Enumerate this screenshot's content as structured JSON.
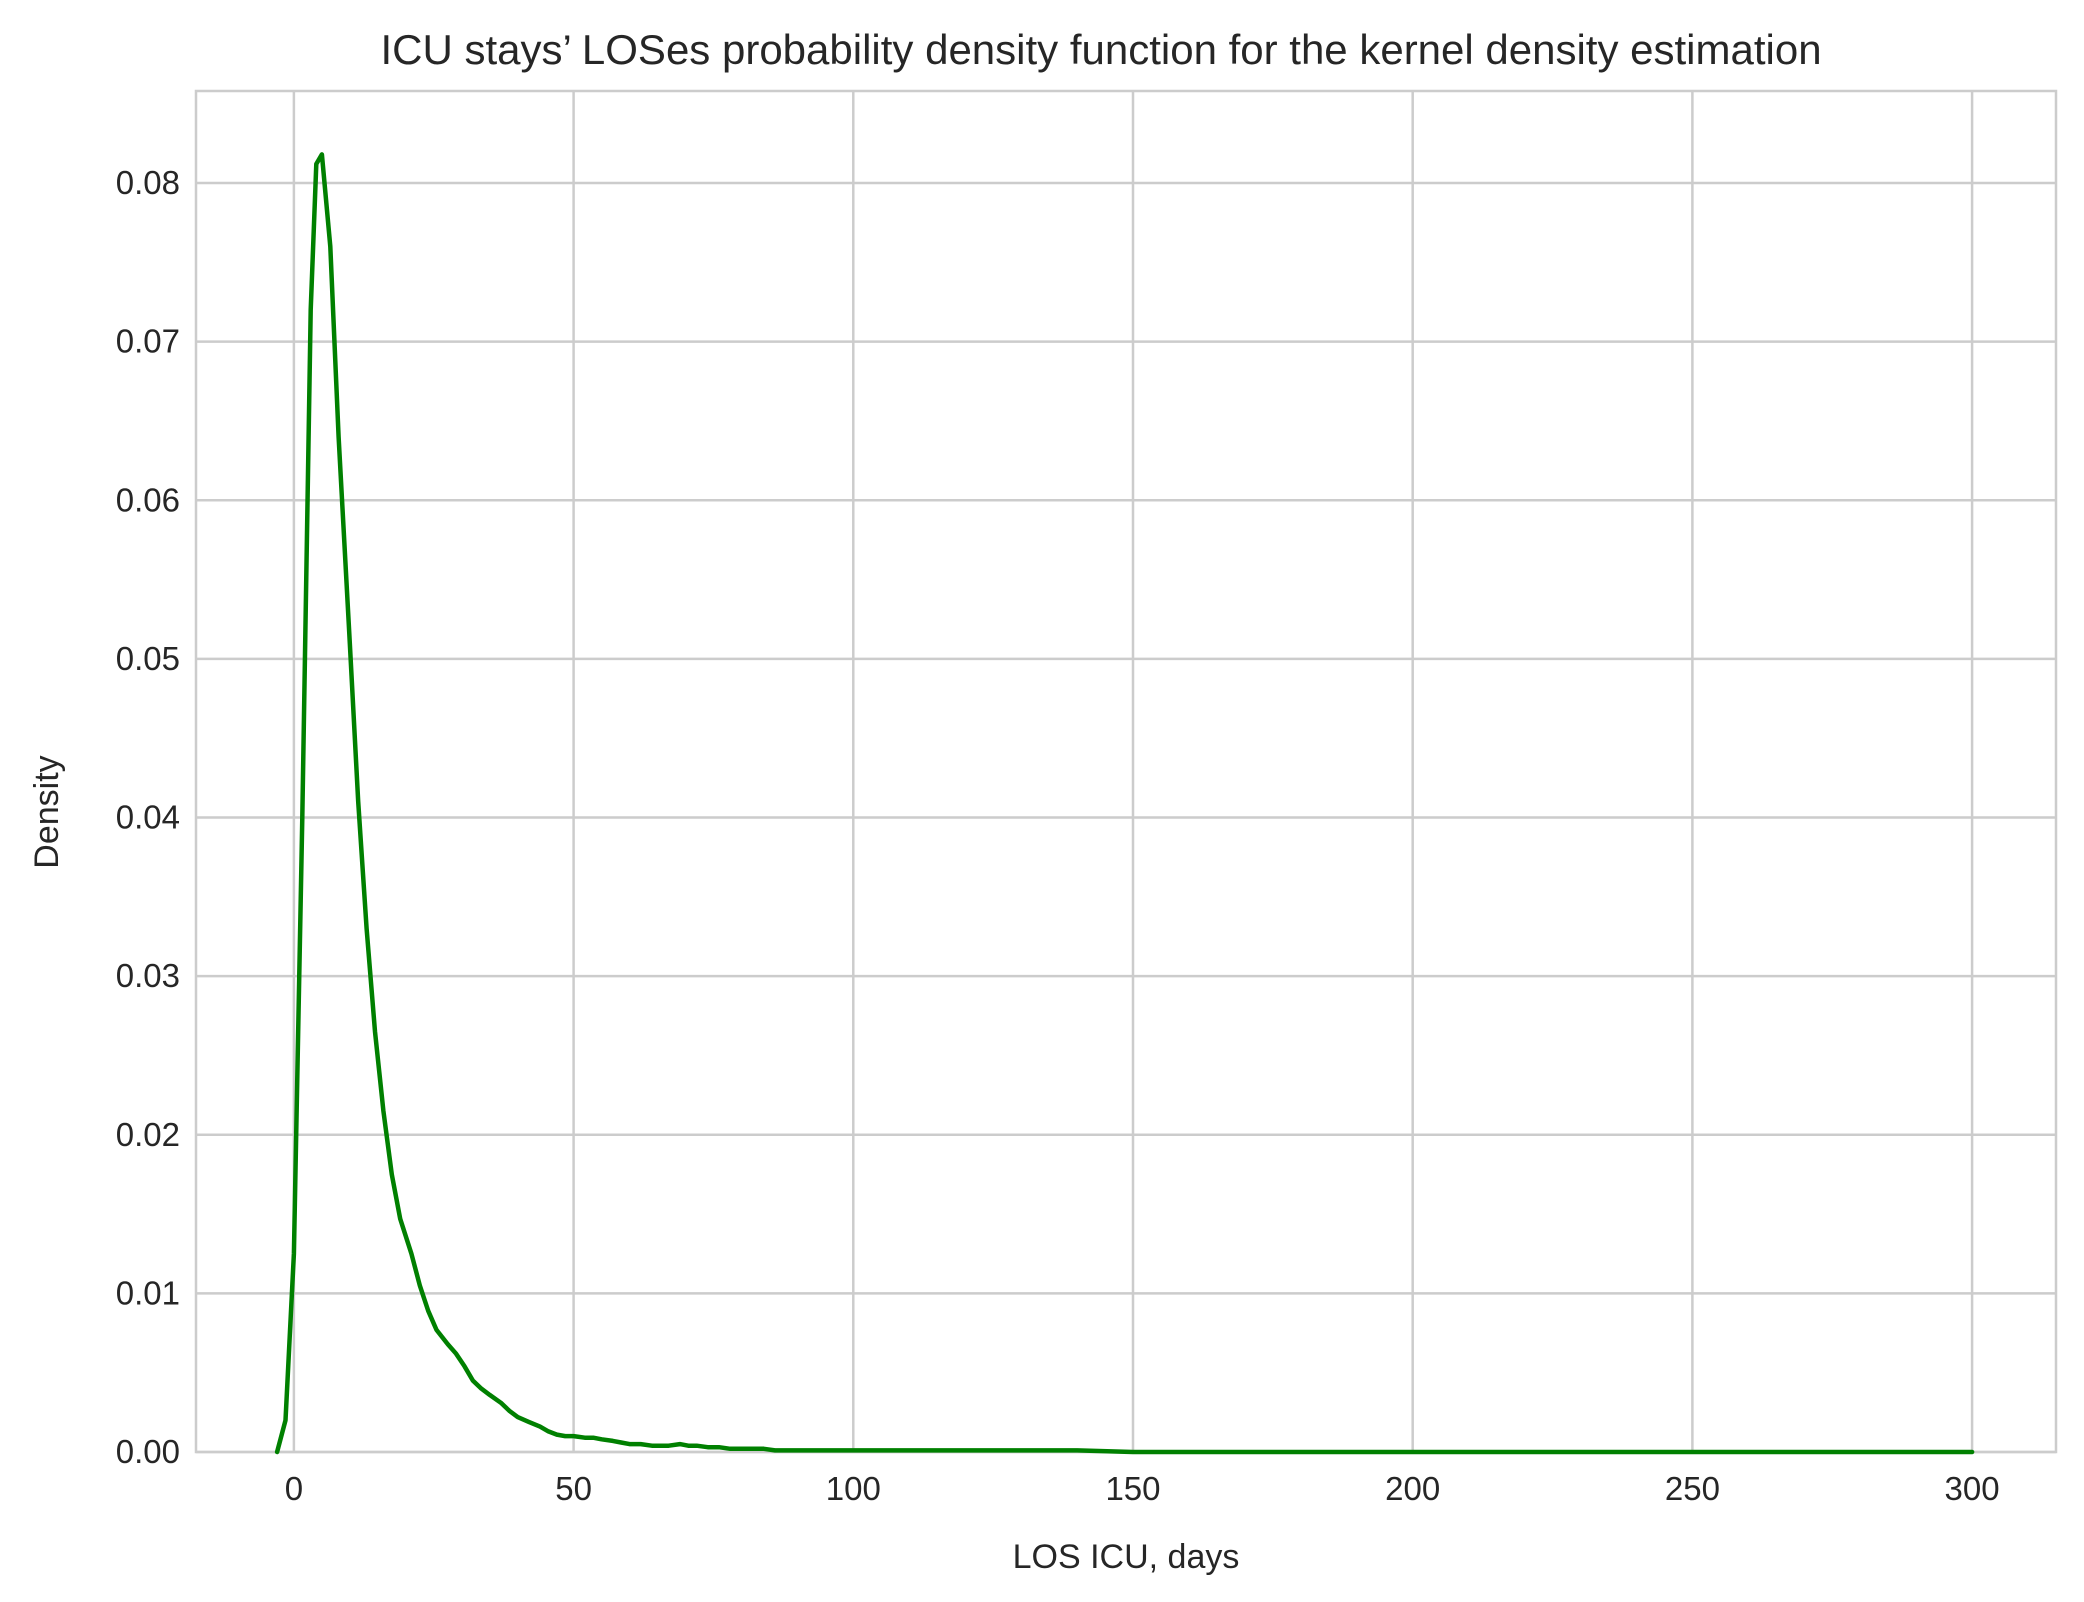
{
  "chart_data": {
    "type": "line",
    "title": "ICU stays’ LOSes probability density function for the kernel density estimation",
    "xlabel": "LOS ICU, days",
    "ylabel": "Density",
    "xlim": [
      -17.5,
      315
    ],
    "ylim": [
      0,
      0.0858
    ],
    "xticks": [
      0,
      50,
      100,
      150,
      200,
      250,
      300
    ],
    "xtick_labels": [
      "0",
      "50",
      "100",
      "150",
      "200",
      "250",
      "300"
    ],
    "yticks": [
      0.0,
      0.01,
      0.02,
      0.03,
      0.04,
      0.05,
      0.06,
      0.07,
      0.08
    ],
    "ytick_labels": [
      "0.00",
      "0.01",
      "0.02",
      "0.03",
      "0.04",
      "0.05",
      "0.06",
      "0.07",
      "0.08"
    ],
    "grid": true,
    "legend": false,
    "colors": {
      "line": "#008000",
      "grid": "#cccccc",
      "text": "#262626",
      "background": "#ffffff"
    },
    "series": [
      {
        "x": [
          -3,
          -1.5,
          0,
          1.5,
          3,
          4,
          5,
          6.5,
          8,
          10,
          11.5,
          13,
          14.5,
          16,
          17.5,
          19,
          21,
          22.5,
          24,
          25.5,
          27.5,
          29,
          30.5,
          32,
          33.5,
          35,
          37,
          38.5,
          40,
          42,
          44,
          45.5,
          47,
          48.5,
          50,
          52,
          53.5,
          55,
          57,
          58.5,
          60,
          62,
          64,
          65.5,
          67,
          69,
          70.5,
          72,
          74,
          76,
          78,
          80,
          82,
          84,
          86,
          88,
          90,
          94,
          98,
          102,
          106,
          110,
          120,
          130,
          140,
          150,
          160,
          170,
          180,
          190,
          200,
          210,
          220,
          230,
          240,
          250,
          260,
          270,
          280,
          290,
          300
        ],
        "y": [
          0.0,
          0.002,
          0.0125,
          0.04,
          0.072,
          0.0812,
          0.0818,
          0.076,
          0.064,
          0.051,
          0.041,
          0.033,
          0.0265,
          0.0215,
          0.0175,
          0.0147,
          0.0125,
          0.0105,
          0.0089,
          0.0077,
          0.0068,
          0.0062,
          0.0054,
          0.0045,
          0.004,
          0.0036,
          0.0031,
          0.0026,
          0.0022,
          0.0019,
          0.0016,
          0.0013,
          0.0011,
          0.001,
          0.001,
          0.0009,
          0.0009,
          0.0008,
          0.0007,
          0.0006,
          0.0005,
          0.0005,
          0.0004,
          0.0004,
          0.0004,
          0.0005,
          0.0004,
          0.0004,
          0.0003,
          0.0003,
          0.0002,
          0.0002,
          0.0002,
          0.0002,
          0.0001,
          0.0001,
          0.0001,
          0.0001,
          0.0001,
          0.0001,
          0.0001,
          0.0001,
          0.0001,
          0.0001,
          0.0001,
          0.0,
          0.0,
          0.0,
          0.0,
          0.0,
          0.0,
          0.0,
          0.0,
          0.0,
          0.0,
          0.0,
          0.0,
          0.0,
          0.0,
          0.0,
          0.0
        ]
      }
    ]
  }
}
